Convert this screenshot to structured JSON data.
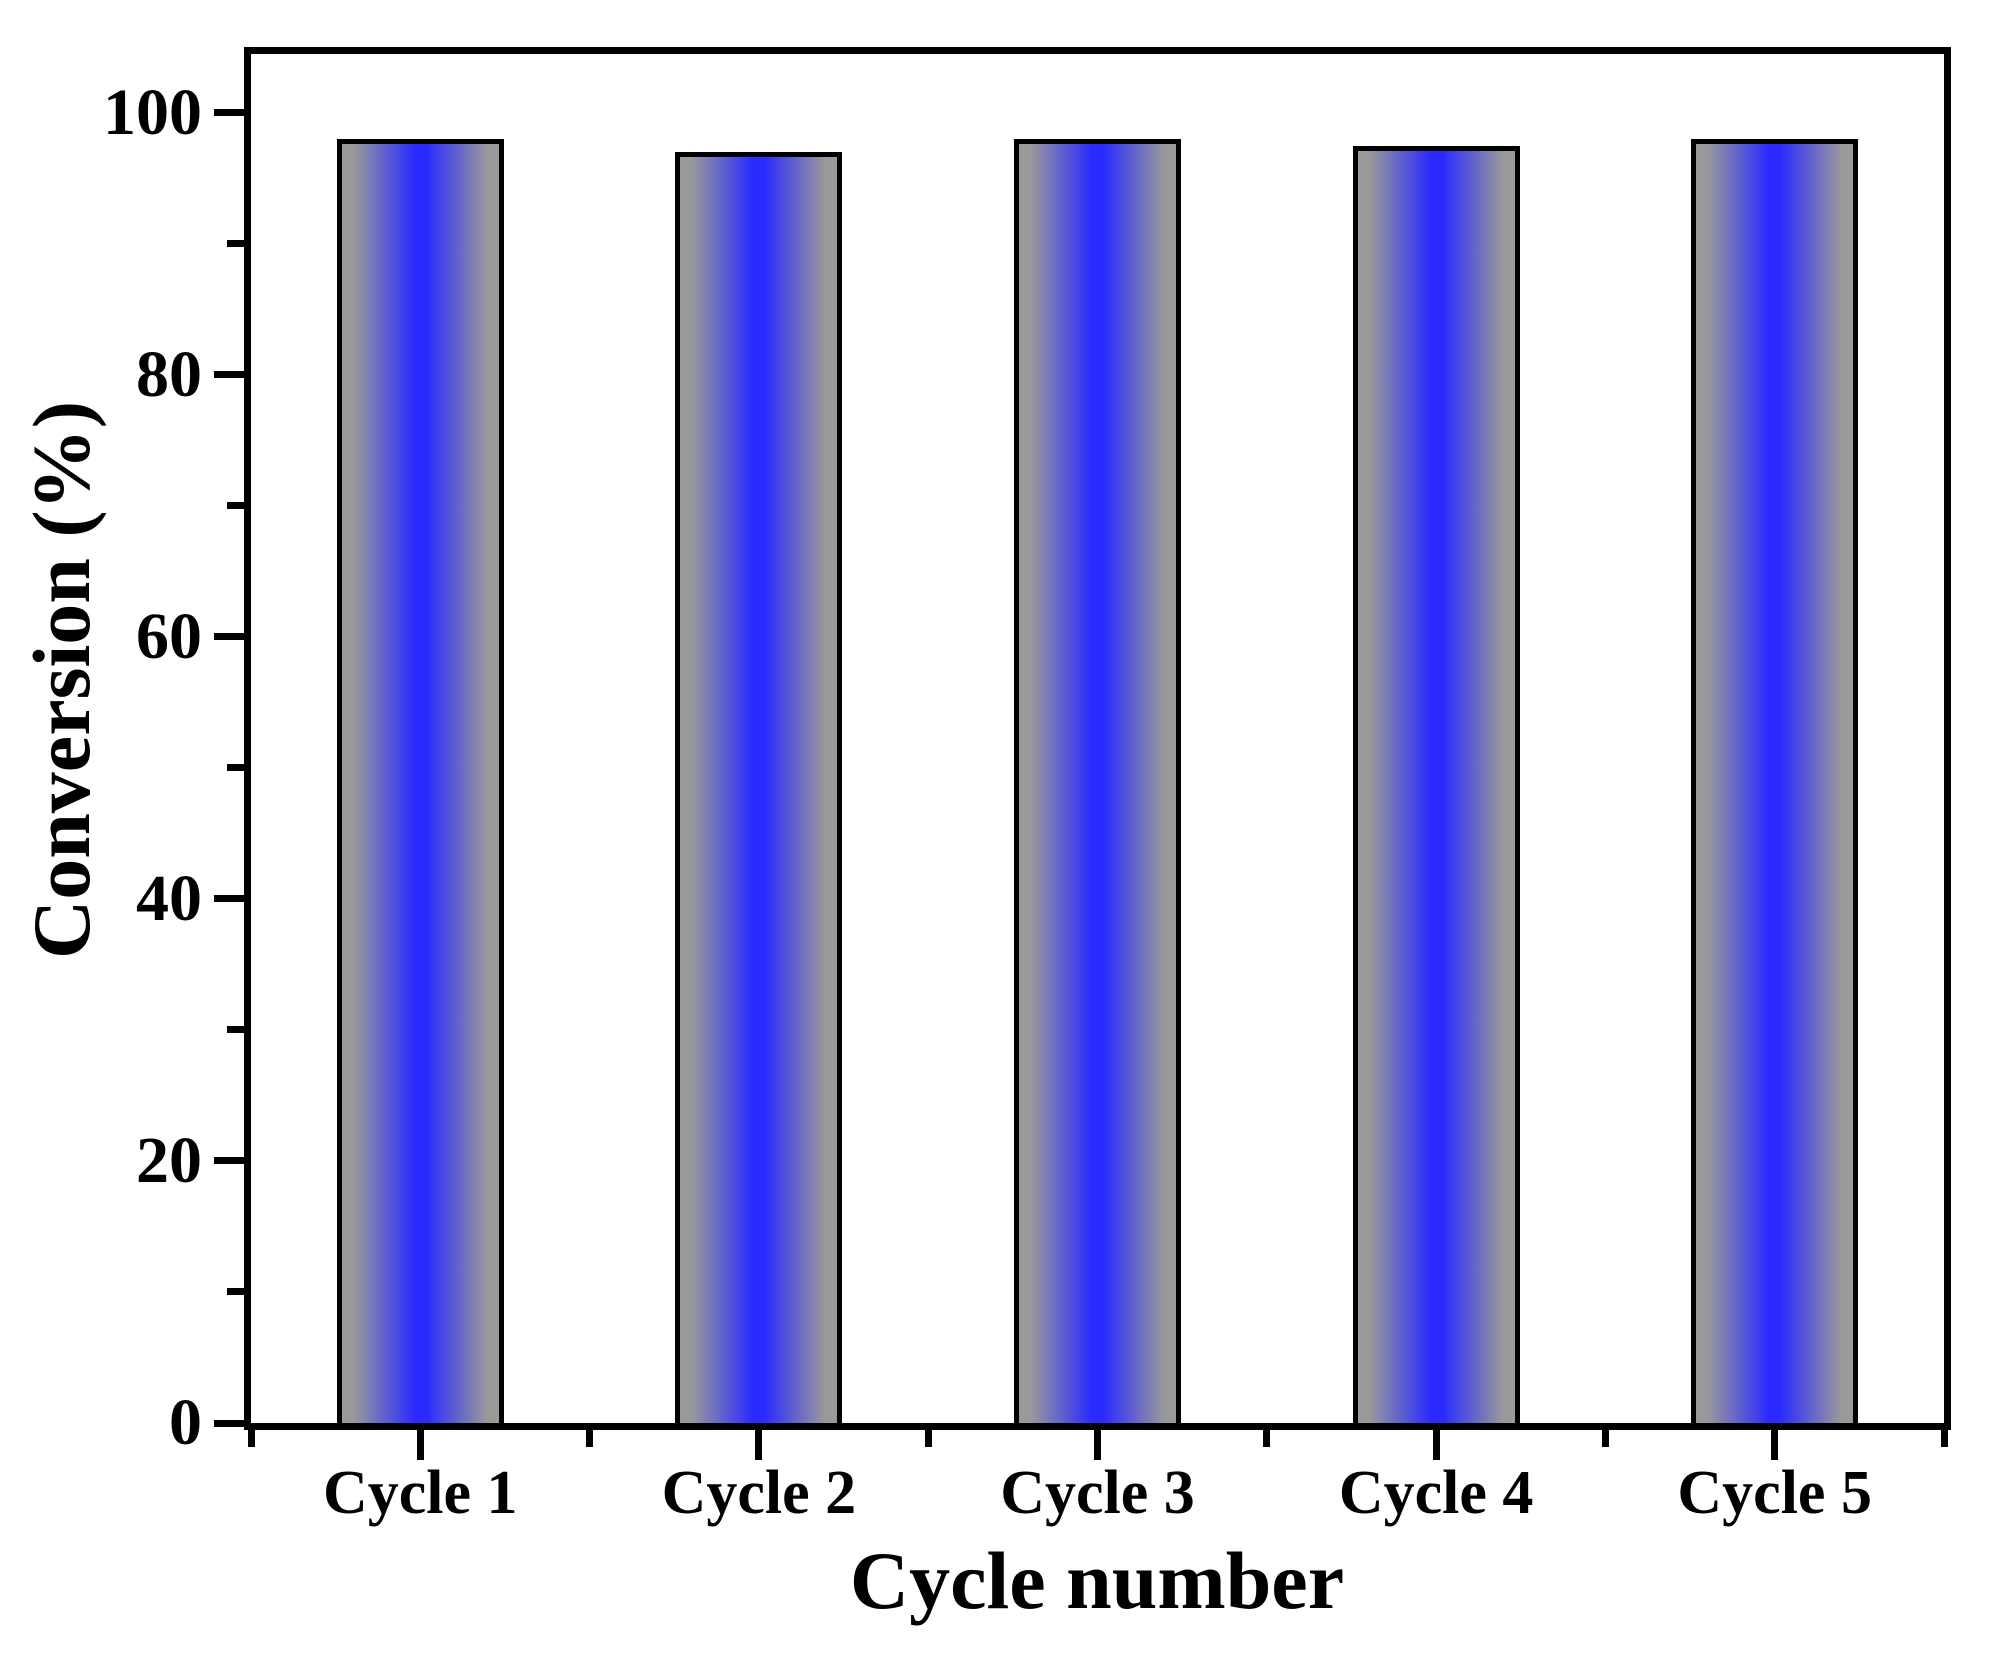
{
  "chart_data": {
    "type": "bar",
    "title": "",
    "xlabel": "Cycle number",
    "ylabel": "Conversion (%)",
    "categories": [
      "Cycle 1",
      "Cycle 2",
      "Cycle 3",
      "Cycle 4",
      "Cycle 5"
    ],
    "values": [
      98,
      97,
      98,
      97.5,
      98
    ],
    "ylim": [
      0,
      104.5
    ],
    "yticks": [
      0,
      20,
      40,
      60,
      80,
      100
    ],
    "ytick_labels": [
      "0",
      "20",
      "40",
      "60",
      "80",
      "100"
    ],
    "ytick_minor_step": 10,
    "grid": false,
    "legend": "none",
    "bar_fill_edge_color": "#9a9a9a",
    "bar_fill_center_color": "#2b2bff",
    "bar_border_color": "#000000",
    "axis_color": "#000000",
    "background_color": "#ffffff"
  }
}
